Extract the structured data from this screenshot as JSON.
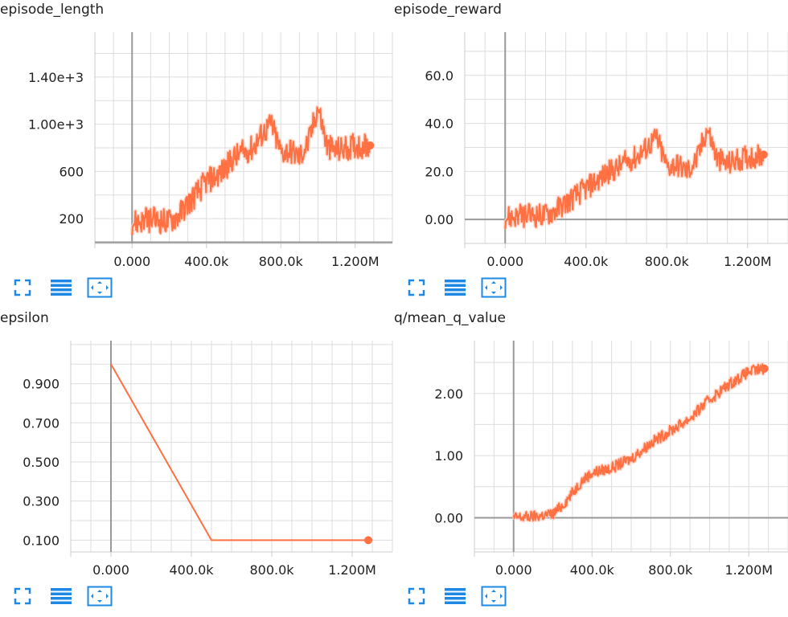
{
  "toolbar": {
    "icons": [
      "fullscreen-icon",
      "data-series-icon",
      "fit-domain-icon"
    ],
    "accent_color": "#1e88e5"
  },
  "style": {
    "line_color": "#ff7043",
    "smooth_color": "#ffccbc",
    "grid_color": "#dddddd",
    "axis_color": "#999999"
  },
  "chart_data": [
    {
      "type": "line",
      "title": "episode_length",
      "xlim": [
        -200000,
        1400000
      ],
      "ylim": [
        -10,
        1780
      ],
      "xticks": [
        0,
        400000,
        800000,
        1200000
      ],
      "xtick_labels": [
        "0.000",
        "400.0k",
        "800.0k",
        "1.200M"
      ],
      "yticks": [
        200,
        600,
        1000,
        1400
      ],
      "ytick_labels": [
        "200",
        "600",
        "1.00e+3",
        "1.40e+3"
      ],
      "grid": true,
      "noise": 110,
      "series": [
        {
          "x": [
            0,
            100000,
            200000,
            250000,
            300000,
            350000,
            400000,
            450000,
            500000,
            550000,
            600000,
            650000,
            700000,
            750000,
            800000,
            850000,
            900000,
            950000,
            1000000,
            1050000,
            1100000,
            1150000,
            1200000,
            1280000
          ],
          "y": [
            170,
            190,
            180,
            230,
            330,
            420,
            520,
            560,
            620,
            720,
            760,
            800,
            920,
            1000,
            760,
            780,
            720,
            850,
            1150,
            800,
            780,
            800,
            820,
            820
          ]
        }
      ]
    },
    {
      "type": "line",
      "title": "episode_reward",
      "xlim": [
        -200000,
        1400000
      ],
      "ylim": [
        -10,
        78
      ],
      "xticks": [
        0,
        400000,
        800000,
        1200000
      ],
      "xtick_labels": [
        "0.000",
        "400.0k",
        "800.0k",
        "1.200M"
      ],
      "yticks": [
        0,
        20,
        40,
        60
      ],
      "ytick_labels": [
        "0.00",
        "20.0",
        "40.0",
        "60.0"
      ],
      "grid": true,
      "noise": 5,
      "series": [
        {
          "x": [
            0,
            100000,
            200000,
            250000,
            300000,
            350000,
            400000,
            450000,
            500000,
            550000,
            600000,
            650000,
            700000,
            750000,
            800000,
            850000,
            900000,
            950000,
            1000000,
            1050000,
            1100000,
            1150000,
            1200000,
            1280000
          ],
          "y": [
            1,
            1.5,
            2,
            4,
            7,
            10,
            13,
            16,
            19,
            21,
            24,
            26,
            30,
            34,
            22,
            23,
            20,
            25,
            38,
            25,
            23,
            25,
            26,
            27
          ]
        }
      ]
    },
    {
      "type": "line",
      "title": "epsilon",
      "xlim": [
        -200000,
        1400000
      ],
      "ylim": [
        0.04,
        1.12
      ],
      "xticks": [
        0,
        400000,
        800000,
        1200000
      ],
      "xtick_labels": [
        "0.000",
        "400.0k",
        "800.0k",
        "1.200M"
      ],
      "yticks": [
        0.1,
        0.3,
        0.5,
        0.7,
        0.9
      ],
      "ytick_labels": [
        "0.100",
        "0.300",
        "0.500",
        "0.700",
        "0.900"
      ],
      "grid": true,
      "noise": 0,
      "series": [
        {
          "x": [
            0,
            500000,
            1280000
          ],
          "y": [
            1.0,
            0.1,
            0.1
          ]
        }
      ]
    },
    {
      "type": "line",
      "title": "q/mean_q_value",
      "xlim": [
        -200000,
        1400000
      ],
      "ylim": [
        -0.55,
        2.85
      ],
      "xticks": [
        0,
        400000,
        800000,
        1200000
      ],
      "xtick_labels": [
        "0.000",
        "400.0k",
        "800.0k",
        "1.200M"
      ],
      "yticks": [
        0,
        1,
        2
      ],
      "ytick_labels": [
        "0.00",
        "1.00",
        "2.00"
      ],
      "grid": true,
      "noise": 0.09,
      "series": [
        {
          "x": [
            0,
            100000,
            200000,
            250000,
            300000,
            350000,
            400000,
            500000,
            600000,
            700000,
            800000,
            900000,
            1000000,
            1100000,
            1200000,
            1280000
          ],
          "y": [
            0,
            0.02,
            0.06,
            0.2,
            0.4,
            0.6,
            0.72,
            0.8,
            0.95,
            1.2,
            1.4,
            1.6,
            1.9,
            2.15,
            2.35,
            2.4
          ]
        }
      ]
    }
  ]
}
